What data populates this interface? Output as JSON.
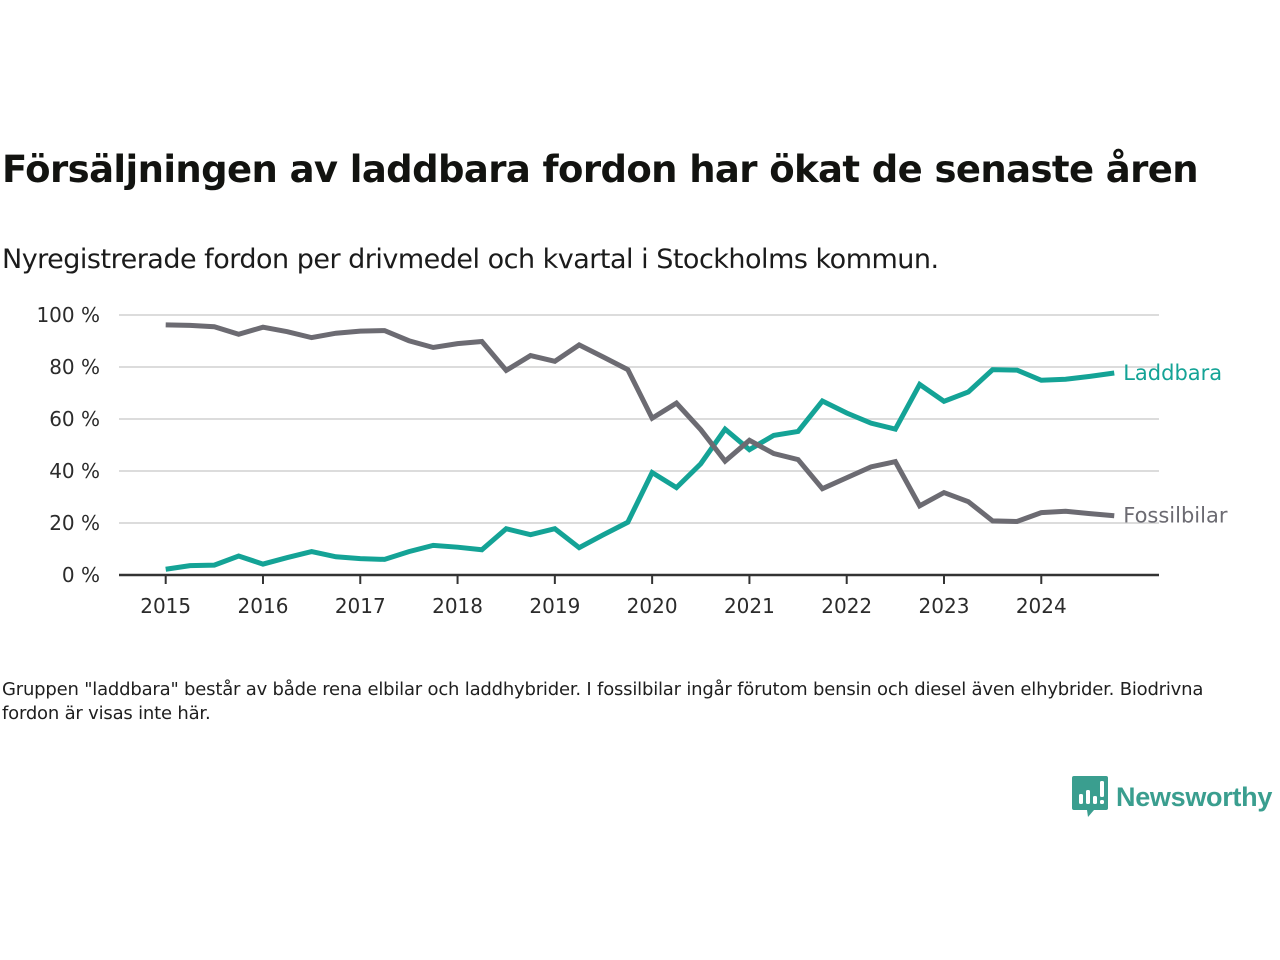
{
  "header": {
    "title": "Försäljningen av laddbara fordon har ökat de senaste åren",
    "subtitle": "Nyregistrerade fordon per drivmedel och kvartal i Stockholms kommun."
  },
  "footer": {
    "note": "Gruppen \"laddbara\" består av både rena elbilar och laddhybrider. I fossilbilar ingår förutom bensin och diesel även elhybrider. Biodrivna fordon är visas inte här.",
    "brand": "Newsworthy",
    "brand_icon": "bar-chart-speech-bubble-icon",
    "brand_color": "#3a9e8f"
  },
  "chart_data": {
    "type": "line",
    "title": "Försäljningen av laddbara fordon har ökat de senaste åren",
    "subtitle": "Nyregistrerade fordon per drivmedel och kvartal i Stockholms kommun.",
    "xlabel": "",
    "ylabel": "",
    "x_unit": "quarter",
    "x": [
      "2015 Q1",
      "2015 Q2",
      "2015 Q3",
      "2015 Q4",
      "2016 Q1",
      "2016 Q2",
      "2016 Q3",
      "2016 Q4",
      "2017 Q1",
      "2017 Q2",
      "2017 Q3",
      "2017 Q4",
      "2018 Q1",
      "2018 Q2",
      "2018 Q3",
      "2018 Q4",
      "2019 Q1",
      "2019 Q2",
      "2019 Q3",
      "2019 Q4",
      "2020 Q1",
      "2020 Q2",
      "2020 Q3",
      "2020 Q4",
      "2021 Q1",
      "2021 Q2",
      "2021 Q3",
      "2021 Q4",
      "2022 Q1",
      "2022 Q2",
      "2022 Q3",
      "2022 Q4",
      "2023 Q1",
      "2023 Q2",
      "2023 Q3",
      "2023 Q4",
      "2024 Q1",
      "2024 Q2",
      "2024 Q3",
      "2024 Q4"
    ],
    "x_numeric_start": 2015,
    "x_step": 0.25,
    "xlim": [
      2014.52,
      2025.21
    ],
    "x_ticks": [
      2015,
      2016,
      2017,
      2018,
      2019,
      2020,
      2021,
      2022,
      2023,
      2024
    ],
    "x_tick_labels": [
      "2015",
      "2016",
      "2017",
      "2018",
      "2019",
      "2020",
      "2021",
      "2022",
      "2023",
      "2024"
    ],
    "ylim": [
      0,
      100
    ],
    "y_ticks": [
      0,
      20,
      40,
      60,
      80,
      100
    ],
    "y_tick_labels": [
      "0 %",
      "20 %",
      "40 %",
      "60 %",
      "80 %",
      "100 %"
    ],
    "grid": "horizontal",
    "legend": "inline-right",
    "series": [
      {
        "name": "Laddbara",
        "color": "#14a396",
        "values": [
          2.2,
          3.6,
          3.8,
          7.3,
          4.2,
          6.7,
          9.0,
          7.0,
          6.3,
          6.0,
          9.0,
          11.4,
          10.7,
          9.7,
          17.8,
          15.5,
          17.8,
          10.5,
          15.5,
          20.3,
          39.4,
          33.6,
          42.8,
          56.1,
          48.2,
          53.7,
          55.2,
          66.9,
          62.3,
          58.4,
          56.1,
          73.3,
          66.8,
          70.4,
          79.0,
          78.8,
          74.9,
          75.3,
          76.4,
          77.7
        ]
      },
      {
        "name": "Fossilbilar",
        "color": "#6c6b72",
        "values": [
          96.2,
          96.0,
          95.5,
          92.6,
          95.3,
          93.6,
          91.3,
          93.0,
          93.8,
          94.0,
          90.1,
          87.5,
          89.0,
          89.8,
          78.7,
          84.4,
          82.2,
          88.5,
          83.8,
          79.0,
          60.3,
          66.1,
          55.9,
          43.8,
          51.8,
          46.7,
          44.4,
          33.2,
          37.4,
          41.6,
          43.6,
          26.6,
          31.7,
          28.2,
          20.8,
          20.6,
          24.0,
          24.5,
          23.6,
          22.8
        ]
      }
    ]
  }
}
